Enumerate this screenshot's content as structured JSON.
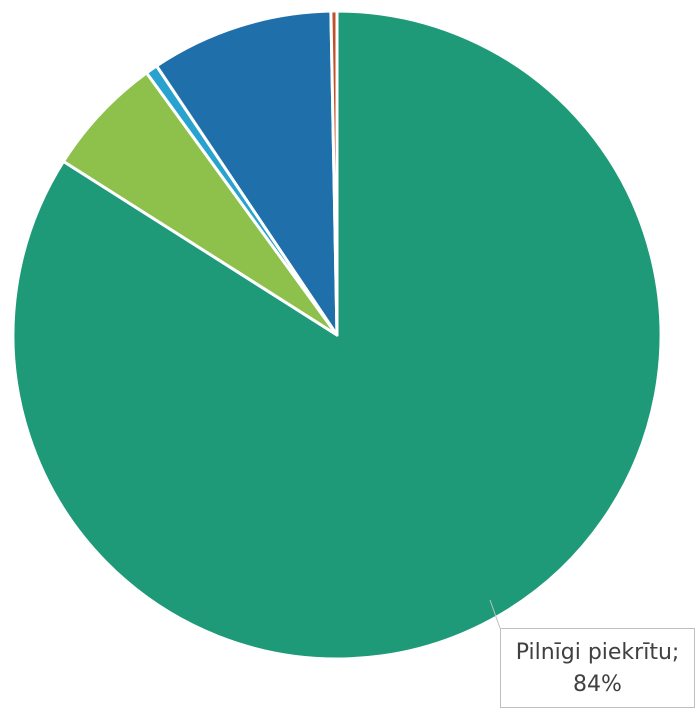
{
  "chart_data": {
    "type": "pie",
    "title": "",
    "start_angle_deg": 0,
    "direction": "clockwise",
    "slices": [
      {
        "label": "Pilnīgi piekrītu",
        "value": 84,
        "color": "#1f9a78"
      },
      {
        "label": "",
        "value": 6,
        "color": "#8dc14c"
      },
      {
        "label": "",
        "value": 0.6,
        "color": "#2aa2cf"
      },
      {
        "label": "",
        "value": 9.1,
        "color": "#1f6fab"
      },
      {
        "label": "",
        "value": 0.3,
        "color": "#c0502a"
      }
    ],
    "data_labels": [
      {
        "slice": 0,
        "name": "Pilnīgi piekrītu;",
        "value_text": "84%"
      }
    ]
  }
}
